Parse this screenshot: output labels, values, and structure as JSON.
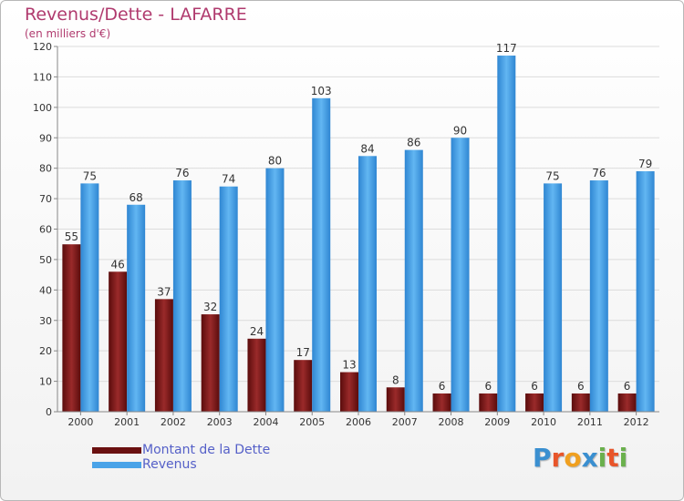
{
  "title": "Revenus/Dette - LAFARRE",
  "subtitle": "(en milliers d'€)",
  "logo": {
    "text": "Proxiti",
    "colors": [
      "#3a8fd0",
      "#e8552a",
      "#f0a020",
      "#3a8fd0",
      "#6ab04c",
      "#e8552a",
      "#6ab04c"
    ]
  },
  "colors": {
    "dette": "#7a1a1a",
    "revenus": "#4aa3e8",
    "title": "#b03a6e",
    "legend_text": "#5560c8"
  },
  "chart_data": {
    "type": "bar",
    "categories": [
      "2000",
      "2001",
      "2002",
      "2003",
      "2004",
      "2005",
      "2006",
      "2007",
      "2008",
      "2009",
      "2010",
      "2011",
      "2012"
    ],
    "series": [
      {
        "name": "Montant de la Dette",
        "values": [
          55,
          46,
          37,
          32,
          24,
          17,
          13,
          8,
          6,
          6,
          6,
          6,
          6
        ]
      },
      {
        "name": "Revenus",
        "values": [
          75,
          68,
          76,
          74,
          80,
          103,
          84,
          86,
          90,
          117,
          75,
          76,
          79
        ]
      }
    ],
    "title": "Revenus/Dette - LAFARRE",
    "ylabel": "(en milliers d'€)",
    "ylim": [
      0,
      120
    ],
    "yticks": [
      0,
      10,
      20,
      30,
      40,
      50,
      60,
      70,
      80,
      90,
      100,
      110,
      120
    ],
    "grid": true,
    "legend_position": "bottom-left"
  }
}
